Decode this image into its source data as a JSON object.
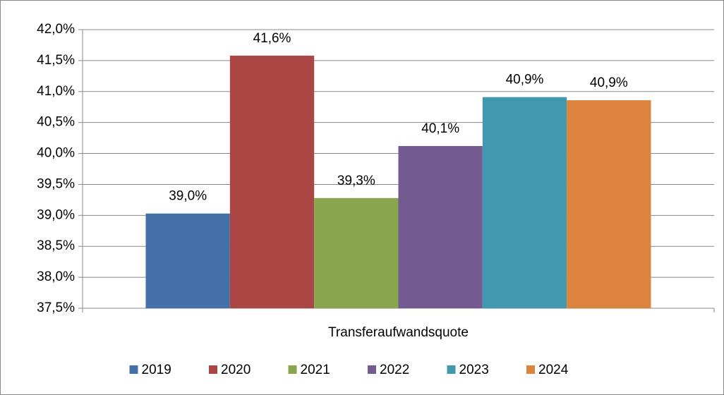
{
  "chart_data": {
    "type": "bar",
    "categories": [
      "Transferaufwandsquote"
    ],
    "series": [
      {
        "name": "2019",
        "color": "#4472a8",
        "values": [
          39.03
        ],
        "value_labels": [
          "39,0%"
        ]
      },
      {
        "name": "2020",
        "color": "#aa4644",
        "values": [
          41.58
        ],
        "value_labels": [
          "41,6%"
        ]
      },
      {
        "name": "2021",
        "color": "#89a54e",
        "values": [
          39.28
        ],
        "value_labels": [
          "39,3%"
        ]
      },
      {
        "name": "2022",
        "color": "#735a91",
        "values": [
          40.12
        ],
        "value_labels": [
          "40,1%"
        ]
      },
      {
        "name": "2023",
        "color": "#4198af",
        "values": [
          40.91
        ],
        "value_labels": [
          "40,9%"
        ]
      },
      {
        "name": "2024",
        "color": "#db843d",
        "values": [
          40.86
        ],
        "value_labels": [
          "40,9%"
        ]
      }
    ],
    "ylim": [
      37.5,
      42.0
    ],
    "yticks": [
      {
        "value": 37.5,
        "label": "37,5%"
      },
      {
        "value": 38.0,
        "label": "38,0%"
      },
      {
        "value": 38.5,
        "label": "38,5%"
      },
      {
        "value": 39.0,
        "label": "39,0%"
      },
      {
        "value": 39.5,
        "label": "39,5%"
      },
      {
        "value": 40.0,
        "label": "40,0%"
      },
      {
        "value": 40.5,
        "label": "40,5%"
      },
      {
        "value": 41.0,
        "label": "41,0%"
      },
      {
        "value": 41.5,
        "label": "41,5%"
      },
      {
        "value": 42.0,
        "label": "42,0%"
      }
    ],
    "grid": true,
    "legend": "bottom"
  }
}
